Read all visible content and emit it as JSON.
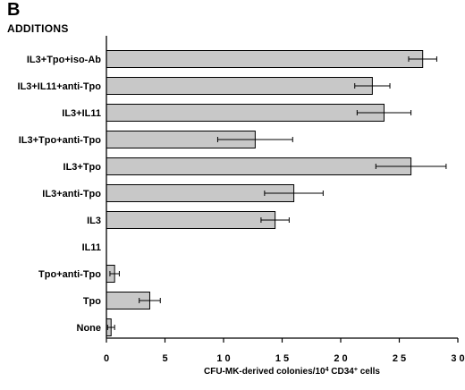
{
  "panel_letter": "B",
  "heading": "ADDITIONS",
  "chart_data": {
    "type": "bar",
    "orientation": "horizontal",
    "categories": [
      "IL3+Tpo+iso-Ab",
      "IL3+IL11+anti-Tpo",
      "IL3+IL11",
      "IL3+Tpo+anti-Tpo",
      "IL3+Tpo",
      "IL3+anti-Tpo",
      "IL3",
      "IL11",
      "Tpo+anti-Tpo",
      "Tpo",
      "None"
    ],
    "values": [
      27.0,
      22.7,
      23.7,
      12.7,
      26.0,
      16.0,
      14.4,
      0,
      0.7,
      3.7,
      0.4
    ],
    "errors": [
      1.2,
      1.5,
      2.3,
      3.2,
      3.0,
      2.5,
      1.2,
      0,
      0.4,
      0.9,
      0.3
    ],
    "xlim": [
      0,
      30
    ],
    "xticks": [
      0,
      5,
      10,
      15,
      20,
      25,
      30
    ],
    "xtick_labels": [
      "0",
      "5",
      "1 0",
      "1 5",
      "2 0",
      "2 5",
      "3 0"
    ],
    "xlabel_main": "CFU-MK-derived   colonies/10",
    "xlabel_sup": "4",
    "xlabel_tail": "  CD34",
    "xlabel_sup2": "+",
    "xlabel_end": "  cells",
    "bar_color": "#c8c8c8",
    "grid": false
  }
}
